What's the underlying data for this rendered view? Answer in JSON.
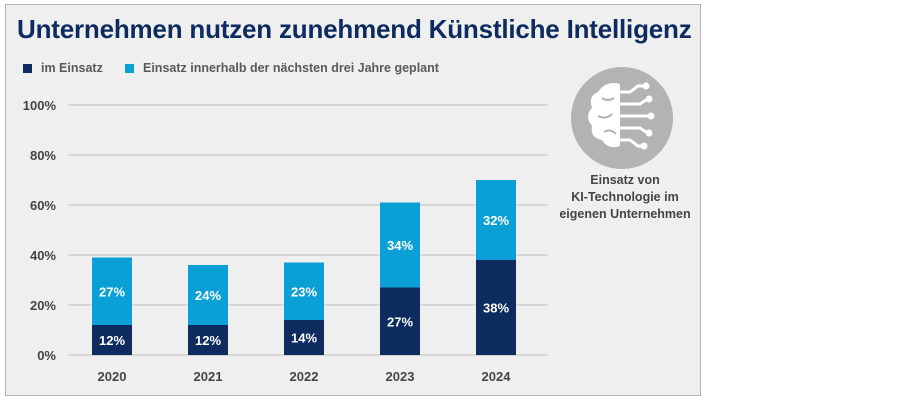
{
  "chart_data": {
    "type": "bar",
    "stacked": true,
    "title": "Unternehmen nutzen zunehmend Künstliche Intelligenz",
    "categories": [
      "2020",
      "2021",
      "2022",
      "2023",
      "2024"
    ],
    "series": [
      {
        "name": "im Einsatz",
        "color": "#0d2b5e",
        "values": [
          12,
          12,
          14,
          27,
          38
        ]
      },
      {
        "name": "Einsatz innerhalb der nächsten drei Jahre geplant",
        "color": "#0aa0d6",
        "values": [
          27,
          24,
          23,
          34,
          32
        ]
      }
    ],
    "yticks": [
      "0%",
      "20%",
      "40%",
      "60%",
      "80%",
      "100%"
    ],
    "ylim": [
      0,
      100
    ],
    "grid": true,
    "legend": "top-left"
  },
  "side_note": {
    "icon": "brain-circuit-icon",
    "lines": [
      "Einsatz von",
      "KI-Technologie im",
      "eigenen Unternehmen"
    ]
  }
}
